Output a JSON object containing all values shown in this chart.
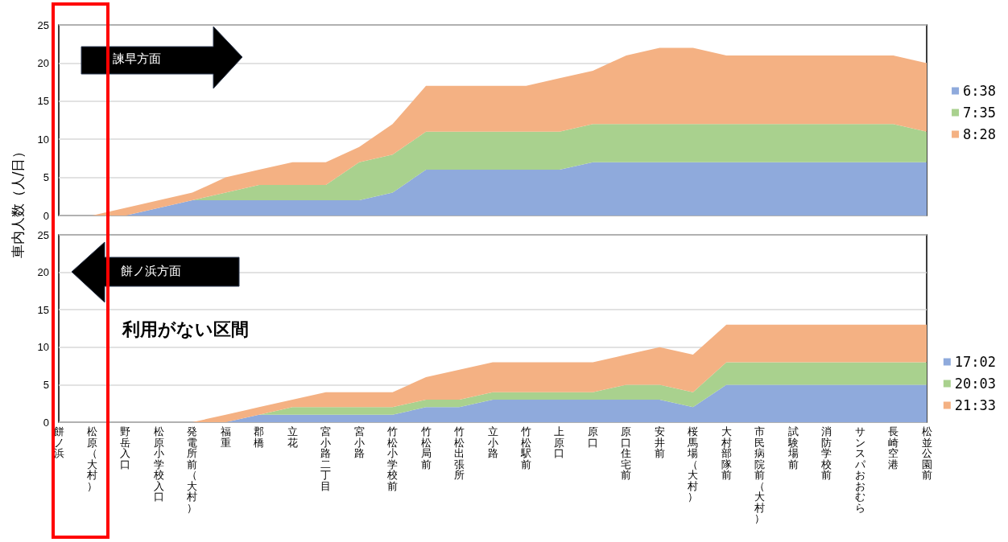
{
  "chart_data": [
    {
      "type": "area",
      "stacked": true,
      "ylabel": "車内人数（人/日）",
      "annotations": [
        "諫早方面"
      ],
      "legend": "right",
      "grid": "y",
      "tick_labels": "y",
      "categories": [
        null,
        null,
        null,
        null,
        null,
        null,
        null,
        null,
        null,
        null,
        null,
        null,
        null,
        null,
        null,
        null,
        null,
        null,
        null,
        null,
        null,
        null,
        null,
        null,
        null,
        null,
        null
      ],
      "ylim": [
        0,
        25
      ],
      "yticks": [
        0,
        5,
        10,
        15,
        20,
        25
      ],
      "series": [
        {
          "name": "6:38",
          "color": "#8faadc",
          "values": [
            0,
            0,
            0,
            1,
            2,
            2,
            2,
            2,
            2,
            2,
            3,
            6,
            6,
            6,
            6,
            6,
            7,
            7,
            7,
            7,
            7,
            7,
            7,
            7,
            7,
            7,
            7
          ]
        },
        {
          "name": "7:35",
          "color": "#a9d18e",
          "values": [
            0,
            0,
            0,
            0,
            0,
            1,
            2,
            2,
            2,
            5,
            5,
            5,
            5,
            5,
            5,
            5,
            5,
            5,
            5,
            5,
            5,
            5,
            5,
            5,
            5,
            5,
            4
          ]
        },
        {
          "name": "8:28",
          "color": "#f4b183",
          "values": [
            0,
            0,
            1,
            1,
            1,
            2,
            2,
            3,
            3,
            2,
            4,
            6,
            6,
            6,
            6,
            7,
            7,
            9,
            10,
            10,
            9,
            9,
            9,
            9,
            9,
            9,
            9
          ]
        }
      ]
    },
    {
      "type": "area",
      "stacked": true,
      "annotations": [
        "餅ノ浜方面",
        "利用がない区間"
      ],
      "legend": "right",
      "grid": "y",
      "categories": [
        "餅ノ浜",
        "松原（大村）",
        "野岳入口",
        "松原小学校入口",
        "発電所前（大村）",
        "福重",
        "郡橋",
        "立花",
        "宮小路二丁目",
        "宮小路",
        "竹松小学校前",
        "竹松局前",
        "竹松出張所",
        "立小路",
        "竹松駅前",
        "上原口",
        "原口",
        "原口住宅前",
        "安井前",
        "桜馬場（大村）",
        "大村部隊前",
        "市民病院前（大村）",
        "試験場前",
        "消防学校前",
        "サンスパおおむら",
        "長崎空港",
        "松並公園前"
      ],
      "ylim": [
        0,
        25
      ],
      "yticks": [
        0,
        5,
        10,
        15,
        20,
        25
      ],
      "series": [
        {
          "name": "17:02",
          "color": "#8faadc",
          "values": [
            0,
            0,
            0,
            0,
            0,
            0,
            1,
            1,
            1,
            1,
            1,
            2,
            2,
            3,
            3,
            3,
            3,
            3,
            3,
            2,
            5,
            5,
            5,
            5,
            5,
            5,
            5
          ]
        },
        {
          "name": "20:03",
          "color": "#a9d18e",
          "values": [
            0,
            0,
            0,
            0,
            0,
            0,
            0,
            1,
            1,
            1,
            1,
            1,
            1,
            1,
            1,
            1,
            1,
            2,
            2,
            2,
            3,
            3,
            3,
            3,
            3,
            3,
            3
          ]
        },
        {
          "name": "21:33",
          "color": "#f4b183",
          "values": [
            0,
            0,
            0,
            0,
            0,
            1,
            1,
            1,
            2,
            2,
            2,
            3,
            4,
            4,
            4,
            4,
            4,
            4,
            5,
            5,
            5,
            5,
            5,
            5,
            5,
            5,
            5
          ]
        }
      ]
    }
  ]
}
